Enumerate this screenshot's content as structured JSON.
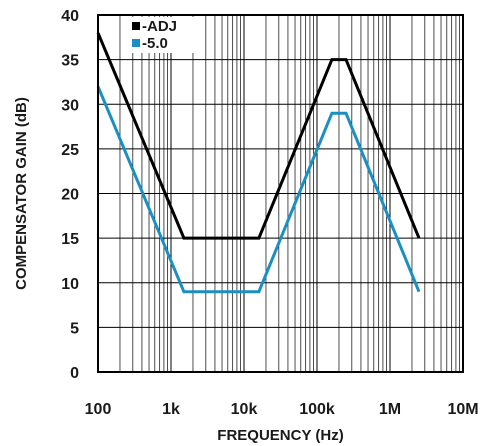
{
  "chart_data": {
    "type": "line",
    "xlabel": "FREQUENCY (Hz)",
    "ylabel": "COMPENSATOR GAIN (dB)",
    "xscale": "log",
    "xlim": [
      100,
      10000000
    ],
    "ylim": [
      0,
      40
    ],
    "grid": true,
    "legend_position": "top-left",
    "x_tick_labels": [
      "100",
      "1k",
      "10k",
      "100k",
      "1M",
      "10M"
    ],
    "y_tick_labels": [
      "0",
      "5",
      "10",
      "15",
      "20",
      "25",
      "30",
      "35",
      "40"
    ],
    "series": [
      {
        "name": "-ADJ",
        "color": "#000000",
        "x": [
          100,
          1500,
          16000,
          160000,
          250000,
          2500000
        ],
        "y": [
          38,
          15,
          15,
          35,
          35,
          15
        ]
      },
      {
        "name": "-5.0",
        "color": "#1a8fc4",
        "x": [
          100,
          1500,
          16000,
          160000,
          250000,
          2500000
        ],
        "y": [
          32,
          9,
          9,
          29,
          29,
          9
        ]
      }
    ]
  }
}
